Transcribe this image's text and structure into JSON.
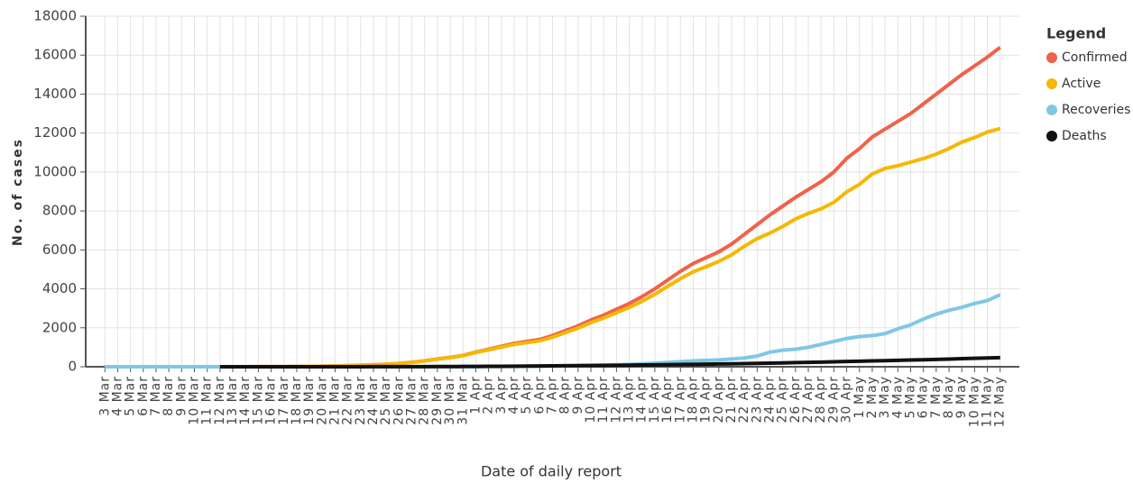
{
  "chart_data": {
    "type": "line",
    "x_label": "Date of daily report",
    "y_label": "No. of cases",
    "legend_title": "Legend",
    "legend_position": "right",
    "grid": true,
    "categories": [
      "3 Mar",
      "4 Mar",
      "5 Mar",
      "6 Mar",
      "7 Mar",
      "8 Mar",
      "9 Mar",
      "10 Mar",
      "11 Mar",
      "12 Mar",
      "13 Mar",
      "14 Mar",
      "15 Mar",
      "16 Mar",
      "17 Mar",
      "18 Mar",
      "19 Mar",
      "20 Mar",
      "21 Mar",
      "22 Mar",
      "23 Mar",
      "24 Mar",
      "25 Mar",
      "26 Mar",
      "27 Mar",
      "28 Mar",
      "29 Mar",
      "30 Mar",
      "31 Mar",
      "1 Apr",
      "2 Apr",
      "3 Apr",
      "4 Apr",
      "5 Apr",
      "6 Apr",
      "7 Apr",
      "8 Apr",
      "9 Apr",
      "10 Apr",
      "11 Apr",
      "12 Apr",
      "13 Apr",
      "14 Apr",
      "15 Apr",
      "16 Apr",
      "17 Apr",
      "18 Apr",
      "19 Apr",
      "20 Apr",
      "21 Apr",
      "22 Apr",
      "23 Apr",
      "24 Apr",
      "25 Apr",
      "26 Apr",
      "27 Apr",
      "28 Apr",
      "29 Apr",
      "30 Apr",
      "1 May",
      "2 May",
      "3 May",
      "4 May",
      "5 May",
      "6 May",
      "7 May",
      "8 May",
      "9 May",
      "10 May",
      "11 May",
      "12 May"
    ],
    "ylim": [
      0,
      18000
    ],
    "yticks": [
      0,
      2000,
      4000,
      6000,
      8000,
      10000,
      12000,
      14000,
      16000,
      18000
    ],
    "series": [
      {
        "name": "Confirmed",
        "color": "#f0624a",
        "values": [
          0,
          0,
          0,
          0,
          0,
          0,
          0,
          0,
          0,
          1,
          1,
          2,
          3,
          5,
          8,
          12,
          20,
          30,
          40,
          60,
          80,
          100,
          130,
          170,
          230,
          300,
          400,
          480,
          580,
          750,
          900,
          1050,
          1200,
          1300,
          1400,
          1600,
          1850,
          2100,
          2400,
          2650,
          2950,
          3250,
          3600,
          4000,
          4450,
          4900,
          5300,
          5600,
          5900,
          6300,
          6800,
          7300,
          7800,
          8250,
          8700,
          9100,
          9500,
          10000,
          10700,
          11200,
          11800,
          12200,
          12600,
          13000,
          13500,
          14000,
          14500,
          15000,
          15450,
          15900,
          16400
        ]
      },
      {
        "name": "Active",
        "color": "#f5b800",
        "values": [
          0,
          0,
          0,
          0,
          0,
          0,
          0,
          0,
          0,
          1,
          1,
          2,
          3,
          5,
          8,
          12,
          20,
          29,
          39,
          58,
          78,
          97,
          126,
          165,
          224,
          292,
          390,
          468,
          565,
          732,
          868,
          1009,
          1150,
          1240,
          1330,
          1515,
          1750,
          1984,
          2268,
          2502,
          2775,
          3048,
          3360,
          3722,
          4124,
          4525,
          4876,
          5137,
          5408,
          5748,
          6188,
          6577,
          6865,
          7202,
          7588,
          7874,
          8110,
          8445,
          8980,
          9365,
          9900,
          10185,
          10320,
          10505,
          10690,
          10922,
          11204,
          11536,
          11768,
          12050,
          12230
        ]
      },
      {
        "name": "Recoveries",
        "color": "#7ec8e6",
        "values": [
          0,
          0,
          0,
          0,
          0,
          0,
          0,
          0,
          0,
          0,
          0,
          0,
          0,
          0,
          0,
          0,
          0,
          0,
          0,
          0,
          0,
          0,
          0,
          0,
          0,
          0,
          0,
          0,
          0,
          0,
          10,
          15,
          20,
          25,
          30,
          40,
          50,
          60,
          70,
          80,
          100,
          120,
          150,
          180,
          220,
          260,
          300,
          330,
          350,
          400,
          450,
          550,
          750,
          850,
          900,
          1000,
          1150,
          1300,
          1450,
          1550,
          1600,
          1700,
          1950,
          2150,
          2450,
          2700,
          2900,
          3050,
          3250,
          3400,
          3700
        ]
      },
      {
        "name": "Deaths",
        "color": "#111111",
        "values": [
          null,
          null,
          null,
          null,
          null,
          null,
          null,
          null,
          null,
          0,
          0,
          0,
          0,
          0,
          0,
          0,
          0,
          1,
          1,
          2,
          2,
          3,
          4,
          5,
          6,
          8,
          10,
          12,
          15,
          18,
          22,
          26,
          30,
          35,
          40,
          45,
          50,
          56,
          62,
          68,
          75,
          82,
          90,
          98,
          106,
          115,
          124,
          133,
          142,
          152,
          162,
          173,
          185,
          198,
          212,
          226,
          240,
          255,
          270,
          285,
          300,
          315,
          330,
          345,
          360,
          378,
          396,
          414,
          432,
          450,
          470
        ]
      }
    ]
  }
}
